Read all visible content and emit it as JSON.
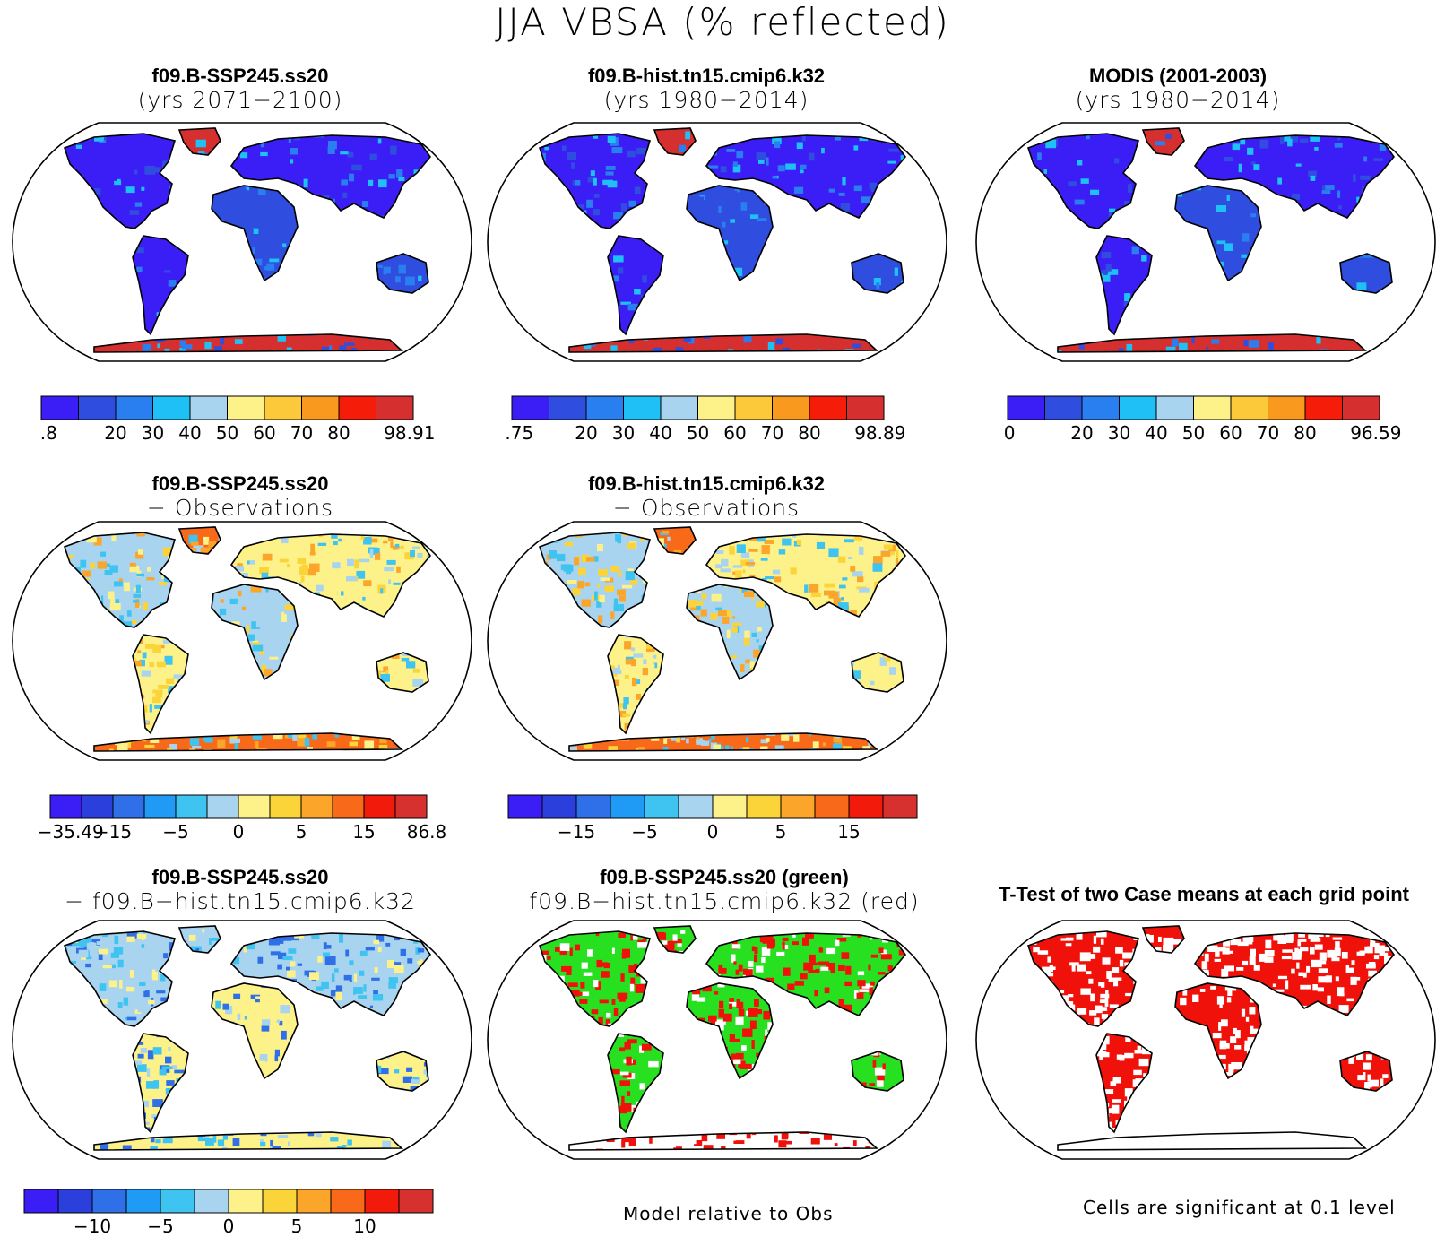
{
  "main_title": "JJA VBSA (% reflected)",
  "palettes": {
    "abs": [
      "#3b1ef5",
      "#2f4ee0",
      "#2a7ff0",
      "#1ec0f5",
      "#a9d4f0",
      "#fdf28a",
      "#fbc93a",
      "#f99a1f",
      "#f51c0a",
      "#d62f2f"
    ],
    "diff": [
      "#3b1ef5",
      "#2a3fdb",
      "#2f6fe8",
      "#1f9af5",
      "#3fc3f0",
      "#a9d4f0",
      "#fdf28a",
      "#fbd43a",
      "#fba52a",
      "#f86a1a",
      "#f21a0a",
      "#d6302f"
    ]
  },
  "panels": [
    {
      "id": "p1",
      "line1": "f09.B-SSP245.ss20",
      "line2": "(yrs 2071−2100)",
      "style": "abs"
    },
    {
      "id": "p2",
      "line1": "f09.B-hist.tn15.cmip6.k32",
      "line2": "(yrs 1980−2014)",
      "style": "abs"
    },
    {
      "id": "p3",
      "line1": "MODIS (2001-2003)",
      "line2": "(yrs 1980−2014)",
      "style": "abs"
    },
    {
      "id": "p4",
      "line1": "f09.B-SSP245.ss20",
      "line2": "− Observations",
      "style": "diffobs"
    },
    {
      "id": "p5",
      "line1": "f09.B-hist.tn15.cmip6.k32",
      "line2": "− Observations",
      "style": "diffobs"
    },
    {
      "id": "p6",
      "line1": "f09.B-SSP245.ss20",
      "line2": "− f09.B−hist.tn15.cmip6.k32",
      "style": "diffcase"
    },
    {
      "id": "p7",
      "line1": "f09.B-SSP245.ss20 (green)",
      "line2": "f09.B−hist.tn15.cmip6.k32 (red)",
      "style": "greenred"
    },
    {
      "id": "p8",
      "line1": "T-Test of two Case means at each grid point",
      "line2": "",
      "style": "ttest"
    }
  ],
  "colorbars": [
    {
      "id": "cb1",
      "labels": [
        ".8",
        "20",
        "30",
        "40",
        "50",
        "60",
        "70",
        "80",
        "98.91"
      ]
    },
    {
      "id": "cb2",
      "labels": [
        ".75",
        "20",
        "30",
        "40",
        "50",
        "60",
        "70",
        "80",
        "98.89"
      ]
    },
    {
      "id": "cb3",
      "labels": [
        "0",
        "20",
        "30",
        "40",
        "50",
        "60",
        "70",
        "80",
        "96.59"
      ]
    },
    {
      "id": "cb4",
      "labels": [
        "−35.49",
        "−15",
        "−5",
        "0",
        "5",
        "15",
        "86.8"
      ]
    },
    {
      "id": "cb5",
      "labels": [
        "−15",
        "−5",
        "0",
        "5",
        "15"
      ]
    },
    {
      "id": "cb6",
      "labels": [
        "−10",
        "−5",
        "0",
        "5",
        "10"
      ]
    }
  ],
  "footer": {
    "model_relative": "Model relative to Obs",
    "significance": "Cells are significant at 0.1 level"
  }
}
